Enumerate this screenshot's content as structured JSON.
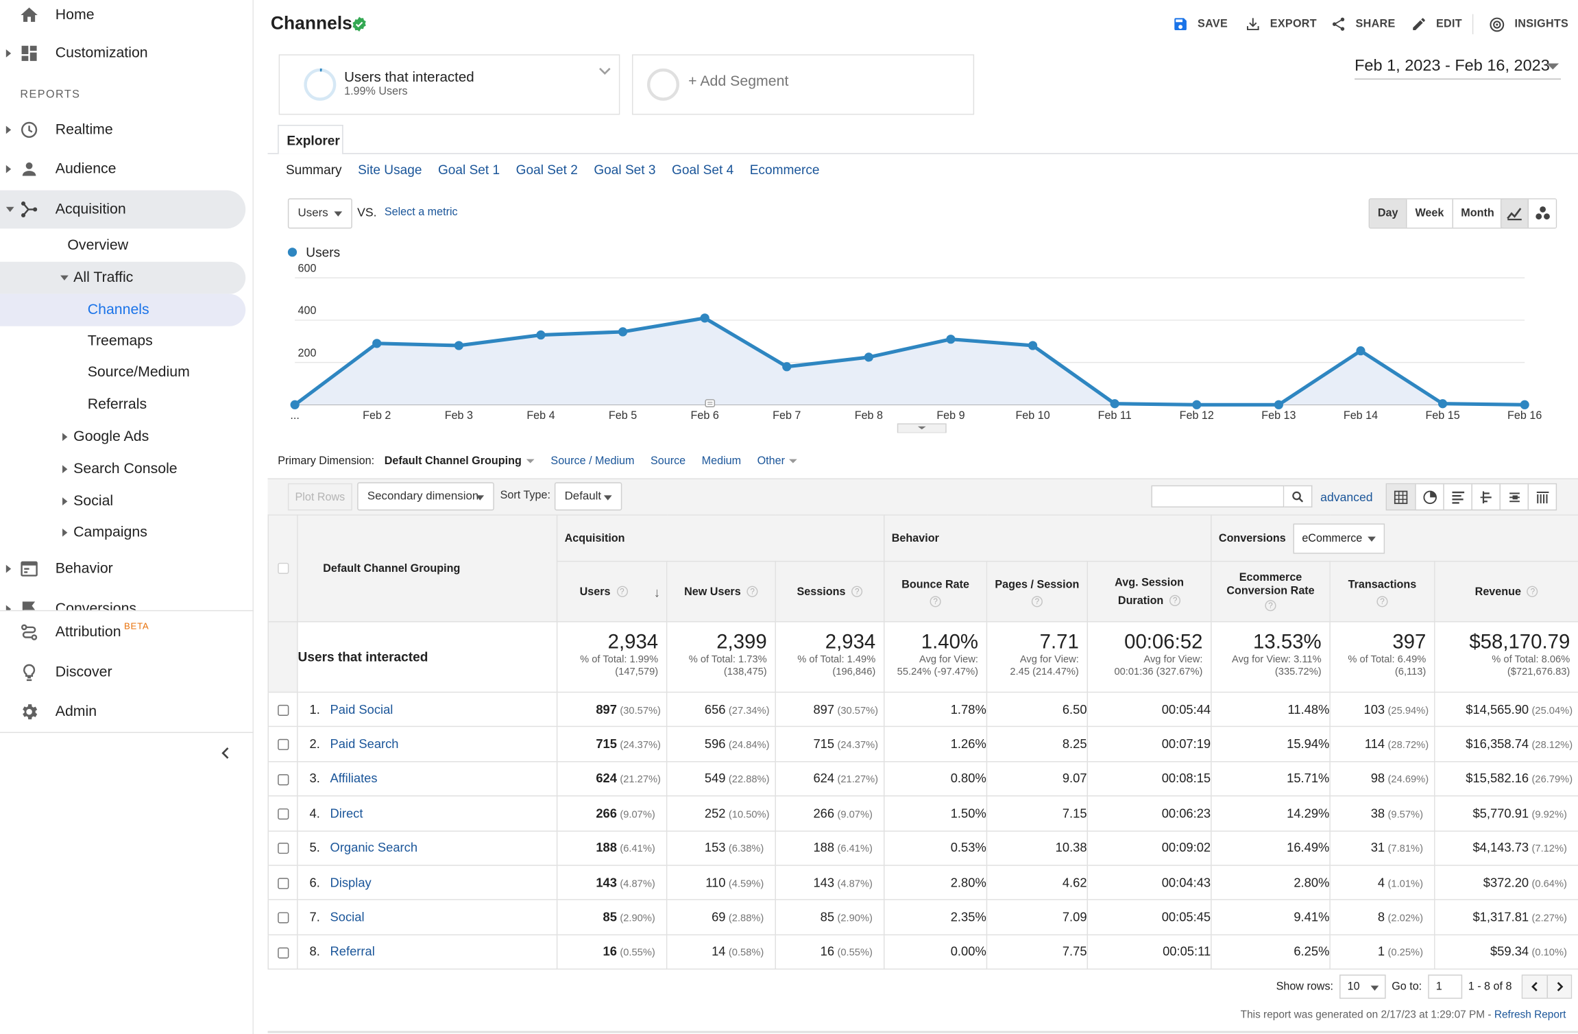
{
  "sidebar": {
    "home": "Home",
    "customization": "Customization",
    "reports_label": "REPORTS",
    "realtime": "Realtime",
    "audience": "Audience",
    "acquisition": "Acquisition",
    "acquisition_items": {
      "overview": "Overview",
      "all_traffic": "All Traffic",
      "channels": "Channels",
      "treemaps": "Treemaps",
      "source_medium": "Source/Medium",
      "referrals": "Referrals",
      "google_ads": "Google Ads",
      "search_console": "Search Console",
      "social": "Social",
      "campaigns": "Campaigns"
    },
    "behavior": "Behavior",
    "conversions": "Conversions",
    "attribution": "Attribution",
    "attribution_badge": "BETA",
    "discover": "Discover",
    "admin": "Admin"
  },
  "header": {
    "title": "Channels",
    "toolbar": {
      "save": "SAVE",
      "export": "EXPORT",
      "share": "SHARE",
      "edit": "EDIT",
      "insights": "INSIGHTS"
    }
  },
  "segments": {
    "seg1_title": "Users that interacted",
    "seg1_sub": "1.99% Users",
    "add_segment": "+ Add Segment"
  },
  "date_range": "Feb 1, 2023 - Feb 16, 2023",
  "explorer": {
    "tab": "Explorer",
    "subtabs": [
      "Summary",
      "Site Usage",
      "Goal Set 1",
      "Goal Set 2",
      "Goal Set 3",
      "Goal Set 4",
      "Ecommerce"
    ]
  },
  "chart_controls": {
    "metric": "Users",
    "vs": "VS.",
    "select_metric": "Select a metric",
    "periods": [
      "Day",
      "Week",
      "Month"
    ],
    "active_period": "Day"
  },
  "chart_data": {
    "type": "area",
    "series": [
      {
        "name": "Users",
        "color": "#2e86c1"
      }
    ],
    "legend": "Users",
    "x": [
      "...",
      "Feb 2",
      "Feb 3",
      "Feb 4",
      "Feb 5",
      "Feb 6",
      "Feb 7",
      "Feb 8",
      "Feb 9",
      "Feb 10",
      "Feb 11",
      "Feb 12",
      "Feb 13",
      "Feb 14",
      "Feb 15",
      "Feb 16"
    ],
    "values": [
      0,
      290,
      280,
      330,
      345,
      410,
      180,
      225,
      310,
      280,
      5,
      0,
      0,
      255,
      5,
      0
    ],
    "ylim": [
      0,
      600
    ],
    "yticks": [
      200,
      400,
      600
    ],
    "grid": true
  },
  "dimension": {
    "label": "Primary Dimension:",
    "current": "Default Channel Grouping",
    "links": [
      "Source / Medium",
      "Source",
      "Medium",
      "Other"
    ]
  },
  "table_toolbar": {
    "plot_rows": "Plot Rows",
    "secondary_dimension": "Secondary dimension",
    "sort_type_label": "Sort Type:",
    "sort_type": "Default",
    "advanced": "advanced"
  },
  "table": {
    "group_headers": {
      "acquisition": "Acquisition",
      "behavior": "Behavior",
      "conversions": "Conversions",
      "conversions_select": "eCommerce"
    },
    "dimension_header": "Default Channel Grouping",
    "columns": {
      "users": "Users",
      "new_users": "New Users",
      "sessions": "Sessions",
      "bounce_rate": "Bounce Rate",
      "pages_session": "Pages / Session",
      "avg_duration_1": "Avg. Session",
      "avg_duration_2": "Duration",
      "ecom_rate_1": "Ecommerce",
      "ecom_rate_2": "Conversion Rate",
      "transactions": "Transactions",
      "revenue": "Revenue"
    },
    "totals": {
      "label": "Users that interacted",
      "users": {
        "value": "2,934",
        "sub1": "% of Total: 1.99%",
        "sub2": "(147,579)"
      },
      "new_users": {
        "value": "2,399",
        "sub1": "% of Total: 1.73%",
        "sub2": "(138,475)"
      },
      "sessions": {
        "value": "2,934",
        "sub1": "% of Total: 1.49%",
        "sub2": "(196,846)"
      },
      "bounce_rate": {
        "value": "1.40%",
        "sub1": "Avg for View:",
        "sub2": "55.24% (-97.47%)"
      },
      "pages_session": {
        "value": "7.71",
        "sub1": "Avg for View:",
        "sub2": "2.45 (214.47%)"
      },
      "avg_duration": {
        "value": "00:06:52",
        "sub1": "Avg for View:",
        "sub2": "00:01:36 (327.67%)"
      },
      "ecom_rate": {
        "value": "13.53%",
        "sub1": "Avg for View: 3.11%",
        "sub2": "(335.72%)"
      },
      "transactions": {
        "value": "397",
        "sub1": "% of Total: 6.49%",
        "sub2": "(6,113)"
      },
      "revenue": {
        "value": "$58,170.79",
        "sub1": "% of Total: 8.06%",
        "sub2": "($721,676.83)"
      }
    },
    "rows": [
      {
        "idx": "1.",
        "name": "Paid Social",
        "users": "897",
        "users_pct": "(30.57%)",
        "new_users": "656",
        "new_users_pct": "(27.34%)",
        "sessions": "897",
        "sessions_pct": "(30.57%)",
        "bounce": "1.78%",
        "pages": "6.50",
        "duration": "00:05:44",
        "ecom": "11.48%",
        "trans": "103",
        "trans_pct": "(25.94%)",
        "revenue": "$14,565.90",
        "revenue_pct": "(25.04%)"
      },
      {
        "idx": "2.",
        "name": "Paid Search",
        "users": "715",
        "users_pct": "(24.37%)",
        "new_users": "596",
        "new_users_pct": "(24.84%)",
        "sessions": "715",
        "sessions_pct": "(24.37%)",
        "bounce": "1.26%",
        "pages": "8.25",
        "duration": "00:07:19",
        "ecom": "15.94%",
        "trans": "114",
        "trans_pct": "(28.72%)",
        "revenue": "$16,358.74",
        "revenue_pct": "(28.12%)"
      },
      {
        "idx": "3.",
        "name": "Affiliates",
        "users": "624",
        "users_pct": "(21.27%)",
        "new_users": "549",
        "new_users_pct": "(22.88%)",
        "sessions": "624",
        "sessions_pct": "(21.27%)",
        "bounce": "0.80%",
        "pages": "9.07",
        "duration": "00:08:15",
        "ecom": "15.71%",
        "trans": "98",
        "trans_pct": "(24.69%)",
        "revenue": "$15,582.16",
        "revenue_pct": "(26.79%)"
      },
      {
        "idx": "4.",
        "name": "Direct",
        "users": "266",
        "users_pct": "(9.07%)",
        "new_users": "252",
        "new_users_pct": "(10.50%)",
        "sessions": "266",
        "sessions_pct": "(9.07%)",
        "bounce": "1.50%",
        "pages": "7.15",
        "duration": "00:06:23",
        "ecom": "14.29%",
        "trans": "38",
        "trans_pct": "(9.57%)",
        "revenue": "$5,770.91",
        "revenue_pct": "(9.92%)"
      },
      {
        "idx": "5.",
        "name": "Organic Search",
        "users": "188",
        "users_pct": "(6.41%)",
        "new_users": "153",
        "new_users_pct": "(6.38%)",
        "sessions": "188",
        "sessions_pct": "(6.41%)",
        "bounce": "0.53%",
        "pages": "10.38",
        "duration": "00:09:02",
        "ecom": "16.49%",
        "trans": "31",
        "trans_pct": "(7.81%)",
        "revenue": "$4,143.73",
        "revenue_pct": "(7.12%)"
      },
      {
        "idx": "6.",
        "name": "Display",
        "users": "143",
        "users_pct": "(4.87%)",
        "new_users": "110",
        "new_users_pct": "(4.59%)",
        "sessions": "143",
        "sessions_pct": "(4.87%)",
        "bounce": "2.80%",
        "pages": "4.62",
        "duration": "00:04:43",
        "ecom": "2.80%",
        "trans": "4",
        "trans_pct": "(1.01%)",
        "revenue": "$372.20",
        "revenue_pct": "(0.64%)"
      },
      {
        "idx": "7.",
        "name": "Social",
        "users": "85",
        "users_pct": "(2.90%)",
        "new_users": "69",
        "new_users_pct": "(2.88%)",
        "sessions": "85",
        "sessions_pct": "(2.90%)",
        "bounce": "2.35%",
        "pages": "7.09",
        "duration": "00:05:45",
        "ecom": "9.41%",
        "trans": "8",
        "trans_pct": "(2.02%)",
        "revenue": "$1,317.81",
        "revenue_pct": "(2.27%)"
      },
      {
        "idx": "8.",
        "name": "Referral",
        "users": "16",
        "users_pct": "(0.55%)",
        "new_users": "14",
        "new_users_pct": "(0.58%)",
        "sessions": "16",
        "sessions_pct": "(0.55%)",
        "bounce": "0.00%",
        "pages": "7.75",
        "duration": "00:05:11",
        "ecom": "6.25%",
        "trans": "1",
        "trans_pct": "(0.25%)",
        "revenue": "$59.34",
        "revenue_pct": "(0.10%)"
      }
    ]
  },
  "pagination": {
    "show_rows_label": "Show rows:",
    "rows_value": "10",
    "goto_label": "Go to:",
    "goto_value": "1",
    "range": "1 - 8 of 8"
  },
  "footer": {
    "generated": "This report was generated on 2/17/23 at 1:29:07 PM - ",
    "refresh": "Refresh Report"
  }
}
